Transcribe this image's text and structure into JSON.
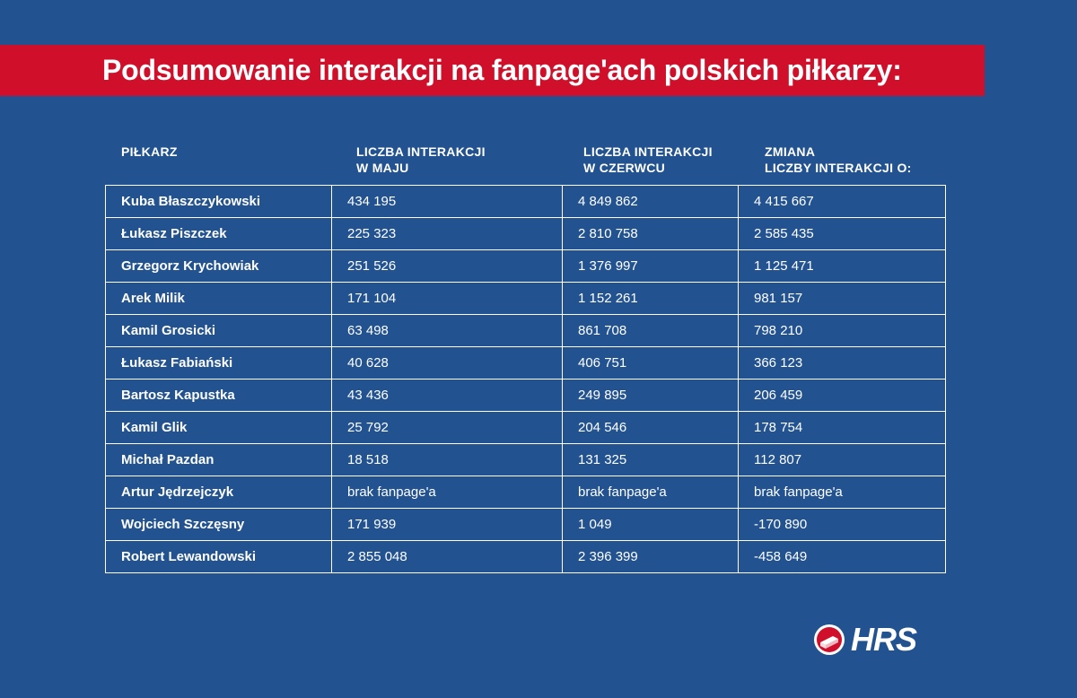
{
  "title": "Podsumowanie interakcji na fanpage'ach polskich piłkarzy:",
  "columns": [
    {
      "line1": "PIŁKARZ",
      "line2": ""
    },
    {
      "line1": "LICZBA INTERAKCJI",
      "line2": "W MAJU"
    },
    {
      "line1": "LICZBA INTERAKCJI",
      "line2": "W CZERWCU"
    },
    {
      "line1": "ZMIANA",
      "line2": "LICZBY INTERAKCJI O:"
    }
  ],
  "rows": [
    {
      "player": "Kuba Błaszczykowski",
      "may": "434 195",
      "june": "4 849 862",
      "change": "4 415 667"
    },
    {
      "player": "Łukasz Piszczek",
      "may": "225 323",
      "june": "2 810 758",
      "change": "2 585 435"
    },
    {
      "player": "Grzegorz Krychowiak",
      "may": "251 526",
      "june": "1 376 997",
      "change": "1 125 471"
    },
    {
      "player": "Arek Milik",
      "may": "171 104",
      "june": "1 152 261",
      "change": "981 157"
    },
    {
      "player": "Kamil Grosicki",
      "may": "63 498",
      "june": "861 708",
      "change": "798 210"
    },
    {
      "player": "Łukasz Fabiański",
      "may": "40 628",
      "june": "406 751",
      "change": "366 123"
    },
    {
      "player": "Bartosz Kapustka",
      "may": "43 436",
      "june": "249 895",
      "change": "206 459"
    },
    {
      "player": "Kamil Glik",
      "may": "25 792",
      "june": "204 546",
      "change": "178 754"
    },
    {
      "player": "Michał Pazdan",
      "may": "18 518",
      "june": "131 325",
      "change": "112 807"
    },
    {
      "player": "Artur Jędrzejczyk",
      "may": "brak fanpage'a",
      "june": "brak fanpage'a",
      "change": "brak fanpage'a"
    },
    {
      "player": "Wojciech Szczęsny",
      "may": "171 939",
      "june": "1 049",
      "change": "-170 890"
    },
    {
      "player": "Robert Lewandowski",
      "may": "2 855 048",
      "june": "2 396 399",
      "change": "-458 649"
    }
  ],
  "logo": {
    "text": "HRS",
    "icon": "bed-icon"
  },
  "colors": {
    "background": "#22528f",
    "banner": "#d0102a",
    "text": "#ffffff"
  }
}
